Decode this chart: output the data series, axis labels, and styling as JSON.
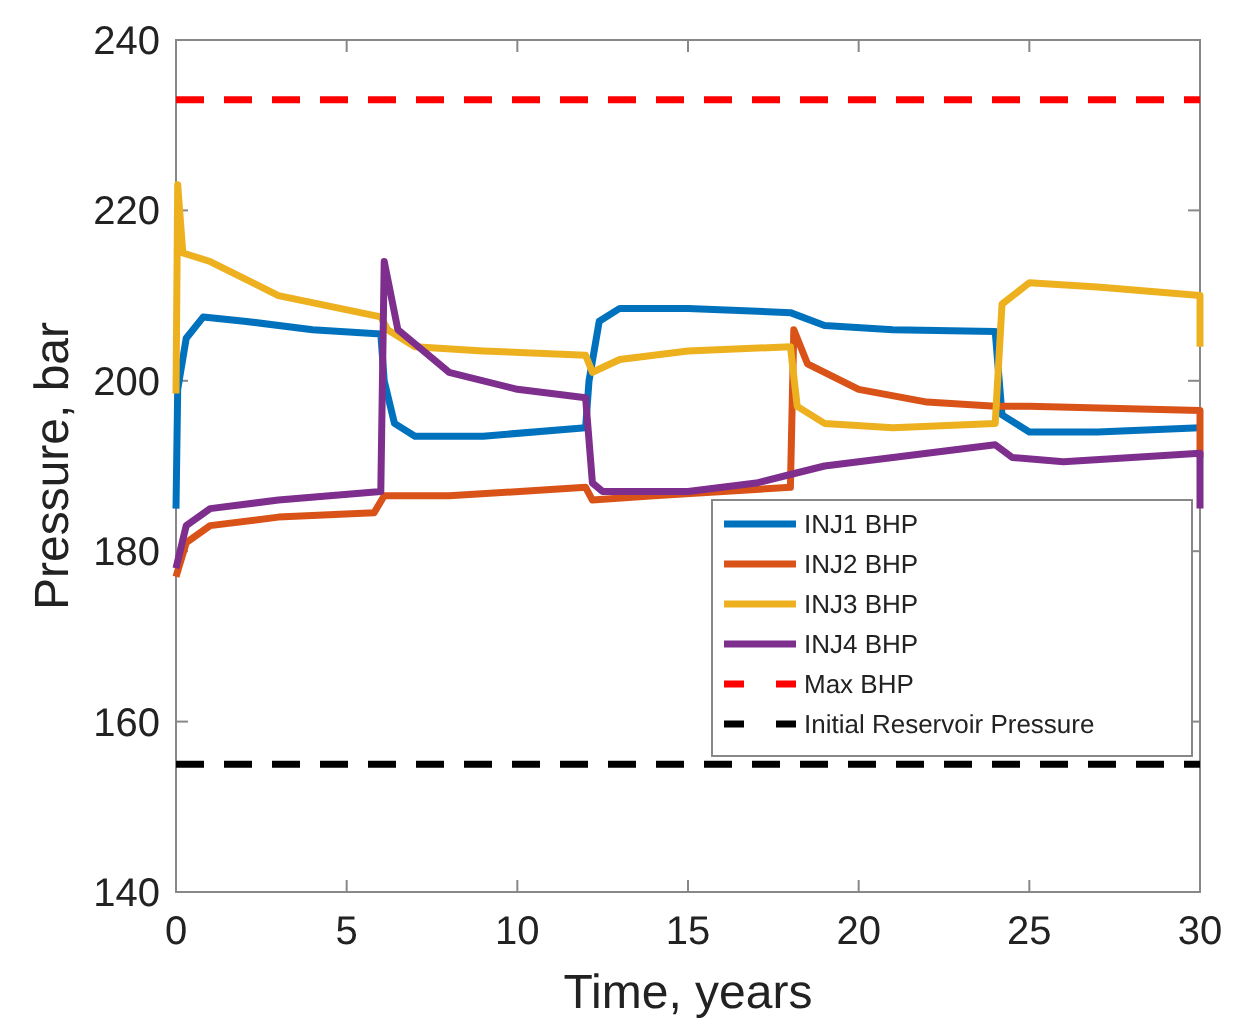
{
  "chart_data": {
    "type": "line",
    "xlabel": "Time, years",
    "ylabel": "Pressure, bar",
    "xlim": [
      0,
      30
    ],
    "ylim": [
      140,
      240
    ],
    "xticks": [
      0,
      5,
      10,
      15,
      20,
      25,
      30
    ],
    "yticks": [
      140,
      160,
      180,
      200,
      220,
      240
    ],
    "grid": false,
    "legend": "bottom right",
    "line_style": "solid",
    "marker": "none",
    "series": [
      {
        "name": "INJ1 BHP",
        "color": "#0072bd",
        "x": [
          0,
          0.05,
          0.3,
          0.8,
          2,
          4,
          6,
          6.1,
          6.4,
          7,
          9,
          12,
          12.1,
          12.4,
          13,
          15,
          18,
          19,
          21,
          24,
          24.2,
          25,
          27,
          30
        ],
        "values": [
          185,
          199,
          205,
          207.5,
          207,
          206,
          205.5,
          200,
          195,
          193.5,
          193.5,
          194.5,
          200,
          207,
          208.5,
          208.5,
          208,
          206.5,
          206,
          205.8,
          196,
          194,
          194,
          194.5
        ]
      },
      {
        "name": "INJ2 BHP",
        "color": "#d95319",
        "x": [
          0,
          0.3,
          1,
          3,
          5.8,
          6.1,
          8,
          12,
          12.2,
          14,
          18,
          18.1,
          18.5,
          20,
          22,
          24,
          25,
          30,
          30
        ],
        "values": [
          177,
          181,
          183,
          184,
          184.5,
          186.5,
          186.5,
          187.5,
          186,
          186.5,
          187.5,
          206,
          202,
          199,
          197.5,
          197,
          197,
          196.5,
          191
        ]
      },
      {
        "name": "INJ3 BHP",
        "color": "#edb120",
        "x": [
          0,
          0.05,
          0.2,
          1,
          3,
          6,
          6.2,
          7,
          9,
          12,
          12.2,
          13,
          15,
          18,
          18.2,
          19,
          21,
          24,
          24.2,
          25,
          27,
          30,
          30
        ],
        "values": [
          198.5,
          223,
          215,
          214,
          210,
          207.5,
          206,
          204,
          203.5,
          203,
          201,
          202.5,
          203.5,
          204,
          197,
          195,
          194.5,
          195,
          209,
          211.5,
          211,
          210,
          204
        ]
      },
      {
        "name": "INJ4 BHP",
        "color": "#7e2f8e",
        "x": [
          0,
          0.3,
          1,
          3,
          6,
          6.1,
          6.5,
          8,
          10,
          12,
          12.2,
          12.5,
          15,
          17,
          18,
          19,
          21,
          23,
          24,
          24.5,
          26,
          30,
          30
        ],
        "values": [
          178,
          183,
          185,
          186,
          187,
          214,
          206,
          201,
          199,
          198,
          188,
          187,
          187,
          188,
          189,
          190,
          191,
          192,
          192.5,
          191,
          190.5,
          191.5,
          185
        ]
      },
      {
        "name": "Max BHP",
        "color": "#ff0000",
        "line_style": "dashed",
        "x": [
          0,
          30
        ],
        "values": [
          233,
          233
        ]
      },
      {
        "name": "Initial Reservoir Pressure",
        "color": "#000000",
        "line_style": "dashed",
        "x": [
          0,
          30
        ],
        "values": [
          155,
          155
        ]
      }
    ]
  }
}
